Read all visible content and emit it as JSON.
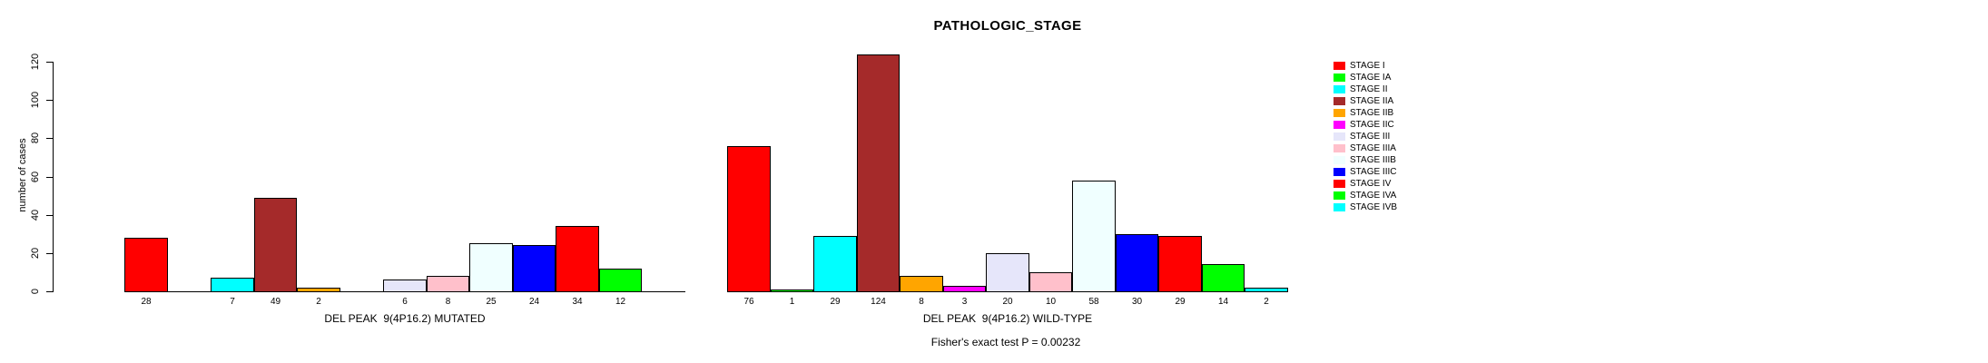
{
  "chart_data": {
    "type": "bar",
    "title": "PATHOLOGIC_STAGE",
    "ylabel": "number of cases",
    "ylim": [
      0,
      120
    ],
    "yticks": [
      0,
      20,
      40,
      60,
      80,
      100,
      120
    ],
    "grid": false,
    "legend_position": "right",
    "categories": [
      "STAGE I",
      "STAGE IA",
      "STAGE II",
      "STAGE IIA",
      "STAGE IIB",
      "STAGE IIC",
      "STAGE III",
      "STAGE IIIA",
      "STAGE IIIB",
      "STAGE IIIC",
      "STAGE IV",
      "STAGE IVA",
      "STAGE IVB"
    ],
    "colors": [
      "#FF0000",
      "#00FF00",
      "#00FFFF",
      "#A52A2A",
      "#FFA500",
      "#FF00FF",
      "#E6E6FA",
      "#FFC0CB",
      "#F0FFFF",
      "#0000FF",
      "#FF0000",
      "#00FF00",
      "#00FFFF"
    ],
    "groups": [
      {
        "key": "mutated",
        "label": "DEL PEAK  9(4P16.2) MUTATED",
        "values": [
          28,
          0,
          7,
          49,
          2,
          0,
          6,
          8,
          25,
          24,
          34,
          12,
          0
        ]
      },
      {
        "key": "wild-type",
        "label": "DEL PEAK  9(4P16.2) WILD-TYPE",
        "values": [
          76,
          1,
          29,
          124,
          8,
          3,
          20,
          10,
          58,
          30,
          29,
          14,
          2
        ]
      }
    ],
    "annotation": "Fisher's exact test P = 0.00232"
  }
}
